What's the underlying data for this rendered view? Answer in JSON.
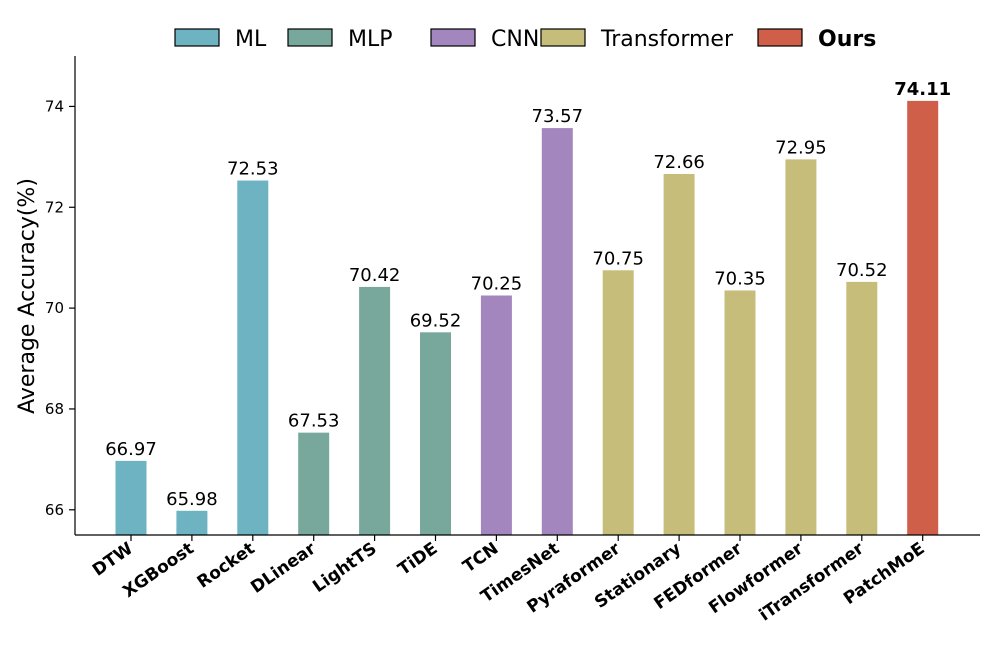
{
  "chart_data": {
    "type": "bar",
    "title": "",
    "xlabel": "",
    "ylabel": "Average Accuracy(%)",
    "ylim": [
      65.5,
      75
    ],
    "yticks": [
      66,
      68,
      70,
      72,
      74
    ],
    "grid": false,
    "legend_position": "top",
    "legend": [
      {
        "key": "ML",
        "label": "ML",
        "color": "#6db3c1",
        "highlight": false
      },
      {
        "key": "MLP",
        "label": "MLP",
        "color": "#78a89b",
        "highlight": false
      },
      {
        "key": "CNN",
        "label": "CNN",
        "color": "#a386bd",
        "highlight": false
      },
      {
        "key": "Transformer",
        "label": "Transformer",
        "color": "#c7bd7a",
        "highlight": false
      },
      {
        "key": "Ours",
        "label": "Ours",
        "color": "#d05f49",
        "highlight": true
      }
    ],
    "categories": [
      "DTW",
      "XGBoost",
      "Rocket",
      "DLinear",
      "LightTS",
      "TiDE",
      "TCN",
      "TimesNet",
      "Pyraformer",
      "Stationary",
      "FEDformer",
      "Flowformer",
      "iTransformer",
      "PatchMoE"
    ],
    "values": [
      66.97,
      65.98,
      72.53,
      67.53,
      70.42,
      69.52,
      70.25,
      73.57,
      70.75,
      72.66,
      70.35,
      72.95,
      70.52,
      74.11
    ],
    "value_labels": [
      "66.97",
      "65.98",
      "72.53",
      "67.53",
      "70.42",
      "69.52",
      "70.25",
      "73.57",
      "70.75",
      "72.66",
      "70.35",
      "72.95",
      "70.52",
      "74.11"
    ],
    "groups": [
      "ML",
      "ML",
      "ML",
      "MLP",
      "MLP",
      "MLP",
      "CNN",
      "CNN",
      "Transformer",
      "Transformer",
      "Transformer",
      "Transformer",
      "Transformer",
      "Ours"
    ],
    "highlight_index": 13,
    "highlight_label_color": "#a52a2a",
    "highlight_category_color": "#d05f49"
  }
}
